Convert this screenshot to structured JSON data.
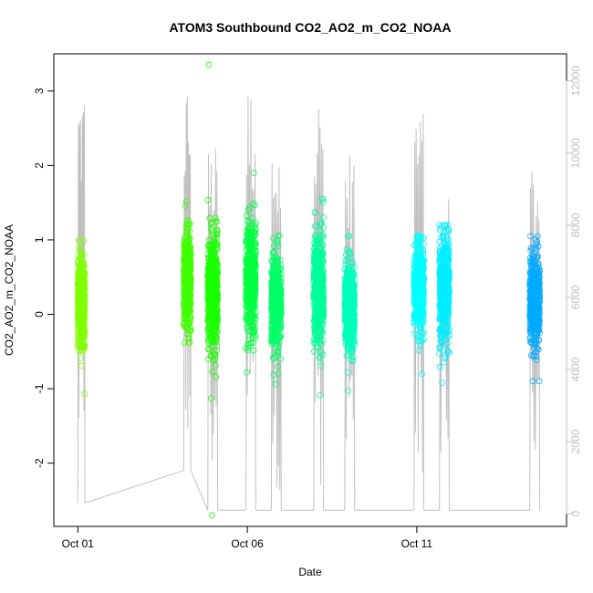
{
  "chart_data": {
    "type": "scatter",
    "title": "ATOM3 Southbound CO2_AO2_m_CO2_NOAA",
    "xlabel": "Date",
    "ylabel": "CO2_AO2_m_CO2_NOAA",
    "x_axis": {
      "unit": "day",
      "range": [
        "2016-09-30T07:00",
        "2016-10-15T10:00"
      ],
      "ticks": [
        {
          "value": "2016-10-01",
          "label": "Oct 01"
        },
        {
          "value": "2016-10-06",
          "label": "Oct 06"
        },
        {
          "value": "2016-10-11",
          "label": "Oct 11"
        }
      ]
    },
    "y_axis": {
      "range": [
        -2.85,
        3.5
      ],
      "ticks": [
        -2,
        -1,
        0,
        1,
        2,
        3
      ]
    },
    "y2_axis": {
      "range": [
        -350,
        12750
      ],
      "ticks": [
        0,
        2000,
        4000,
        6000,
        8000,
        10000,
        12000
      ],
      "color": "#c0c0c0"
    },
    "grid": false,
    "legend": "none",
    "series": [
      {
        "start": "2016-10-01T00:00",
        "end": "2016-10-01T05:00",
        "color": "#80ff00",
        "median": 0.15,
        "sd": 0.28,
        "min": -1.07,
        "max": 0.99
      },
      {
        "start": "2016-10-04T03:00",
        "end": "2016-10-04T08:00",
        "color": "#40ff00",
        "median": 0.45,
        "sd": 0.32,
        "min": -0.38,
        "max": 1.52
      },
      {
        "start": "2016-10-04T20:00",
        "end": "2016-10-05T03:00",
        "color": "#1aff00",
        "median": 0.3,
        "sd": 0.38,
        "min": -2.7,
        "max": 3.35
      },
      {
        "start": "2016-10-05T23:00",
        "end": "2016-10-06T06:00",
        "color": "#00ff40",
        "median": 0.45,
        "sd": 0.35,
        "min": -0.78,
        "max": 1.9
      },
      {
        "start": "2016-10-06T17:00",
        "end": "2016-10-07T00:00",
        "color": "#00ff66",
        "median": 0.2,
        "sd": 0.3,
        "min": -0.94,
        "max": 1.06
      },
      {
        "start": "2016-10-07T23:00",
        "end": "2016-10-08T06:00",
        "color": "#00ff99",
        "median": 0.35,
        "sd": 0.35,
        "min": -1.09,
        "max": 1.55
      },
      {
        "start": "2016-10-08T21:00",
        "end": "2016-10-09T04:00",
        "color": "#00ffbb",
        "median": 0.1,
        "sd": 0.3,
        "min": -1.03,
        "max": 1.05
      },
      {
        "start": "2016-10-10T22:00",
        "end": "2016-10-11T05:00",
        "color": "#00ffff",
        "median": 0.35,
        "sd": 0.3,
        "min": -0.8,
        "max": 1.05
      },
      {
        "start": "2016-10-11T16:00",
        "end": "2016-10-11T23:00",
        "color": "#00eeff",
        "median": 0.35,
        "sd": 0.35,
        "min": -0.92,
        "max": 1.2
      },
      {
        "start": "2016-10-14T08:00",
        "end": "2016-10-14T15:00",
        "color": "#00aaff",
        "median": 0.2,
        "sd": 0.3,
        "min": -0.9,
        "max": 1.05
      }
    ],
    "secondary_series": {
      "axis": "right",
      "color": "#c0c0c0",
      "type": "line",
      "flights": [
        {
          "start": "2016-10-01T00:00",
          "end": "2016-10-01T05:00",
          "floor": 300,
          "peak": 12000
        },
        {
          "start": "2016-10-04T03:00",
          "end": "2016-10-04T08:00",
          "floor": 1200,
          "peak": 12100
        },
        {
          "start": "2016-10-04T20:00",
          "end": "2016-10-05T03:00",
          "floor": 100,
          "peak": 10200
        },
        {
          "start": "2016-10-05T23:00",
          "end": "2016-10-06T06:00",
          "floor": 100,
          "peak": 12000
        },
        {
          "start": "2016-10-06T17:00",
          "end": "2016-10-07T00:00",
          "floor": 100,
          "peak": 10600
        },
        {
          "start": "2016-10-07T23:00",
          "end": "2016-10-08T06:00",
          "floor": 100,
          "peak": 11700
        },
        {
          "start": "2016-10-08T21:00",
          "end": "2016-10-09T04:00",
          "floor": 100,
          "peak": 10200
        },
        {
          "start": "2016-10-10T22:00",
          "end": "2016-10-11T05:00",
          "floor": 100,
          "peak": 11300
        },
        {
          "start": "2016-10-11T16:00",
          "end": "2016-10-11T23:00",
          "floor": 100,
          "peak": 9500
        },
        {
          "start": "2016-10-14T08:00",
          "end": "2016-10-14T15:00",
          "floor": 100,
          "peak": 9500
        }
      ]
    }
  }
}
